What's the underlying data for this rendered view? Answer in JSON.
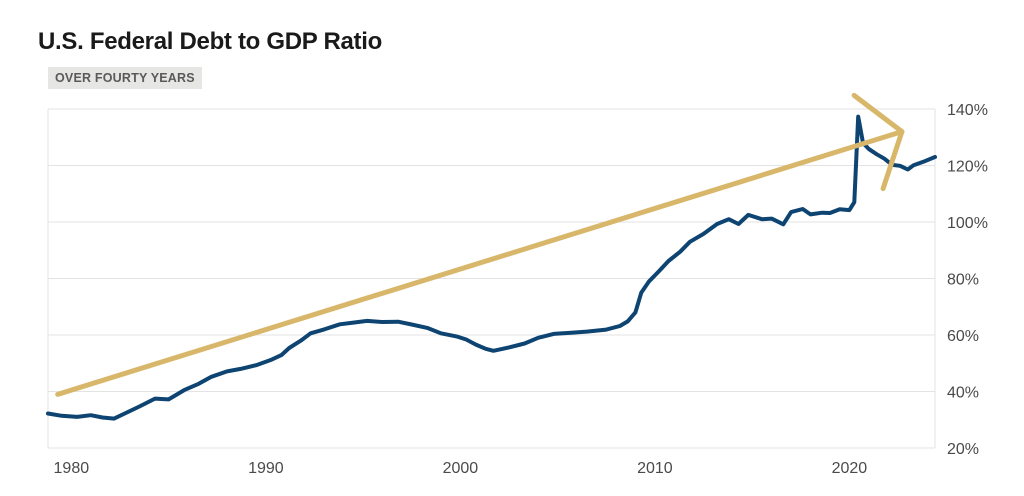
{
  "chart_data": {
    "type": "line",
    "title": "U.S. Federal Debt to GDP Ratio",
    "subtitle": "OVER FOURTY YEARS",
    "xlabel": "",
    "ylabel": "",
    "xlim": [
      1978.8,
      2024.4
    ],
    "ylim": [
      20,
      140
    ],
    "x_ticks": [
      1980,
      1990,
      2000,
      2010,
      2020
    ],
    "x_tick_labels": [
      "1980",
      "1990",
      "2000",
      "2010",
      "2020"
    ],
    "y_ticks": [
      20,
      40,
      60,
      80,
      100,
      120,
      140
    ],
    "y_tick_labels": [
      "20%",
      "40%",
      "60%",
      "80%",
      "100%",
      "120%",
      "140%"
    ],
    "y_axis_position": "right",
    "grid": "horizontal",
    "series": [
      {
        "color": "#0d4471",
        "points": [
          [
            1978.8,
            32.2
          ],
          [
            1979.5,
            31.4
          ],
          [
            1980.3,
            31.0
          ],
          [
            1981.0,
            31.6
          ],
          [
            1981.6,
            30.8
          ],
          [
            1982.2,
            30.4
          ],
          [
            1982.8,
            32.4
          ],
          [
            1983.5,
            34.7
          ],
          [
            1984.3,
            37.5
          ],
          [
            1985.0,
            37.2
          ],
          [
            1985.8,
            40.5
          ],
          [
            1986.5,
            42.6
          ],
          [
            1987.2,
            45.2
          ],
          [
            1988.0,
            47.1
          ],
          [
            1988.7,
            48.0
          ],
          [
            1989.5,
            49.3
          ],
          [
            1990.3,
            51.3
          ],
          [
            1990.8,
            52.9
          ],
          [
            1991.2,
            55.4
          ],
          [
            1991.8,
            58.0
          ],
          [
            1992.3,
            60.6
          ],
          [
            1993.0,
            62.0
          ],
          [
            1993.8,
            63.8
          ],
          [
            1994.5,
            64.4
          ],
          [
            1995.2,
            65.0
          ],
          [
            1996.0,
            64.6
          ],
          [
            1996.8,
            64.7
          ],
          [
            1997.5,
            63.7
          ],
          [
            1998.3,
            62.5
          ],
          [
            1999.0,
            60.6
          ],
          [
            1999.8,
            59.5
          ],
          [
            2000.3,
            58.4
          ],
          [
            2000.8,
            56.6
          ],
          [
            2001.3,
            55.1
          ],
          [
            2001.7,
            54.4
          ],
          [
            2002.5,
            55.6
          ],
          [
            2003.3,
            57.0
          ],
          [
            2004.0,
            59.0
          ],
          [
            2004.8,
            60.4
          ],
          [
            2005.7,
            60.8
          ],
          [
            2006.5,
            61.2
          ],
          [
            2007.5,
            61.9
          ],
          [
            2008.2,
            63.2
          ],
          [
            2008.6,
            64.8
          ],
          [
            2009.0,
            68.0
          ],
          [
            2009.3,
            75.0
          ],
          [
            2009.7,
            79.0
          ],
          [
            2010.2,
            82.5
          ],
          [
            2010.7,
            86.2
          ],
          [
            2011.3,
            89.5
          ],
          [
            2011.8,
            93.0
          ],
          [
            2012.5,
            95.8
          ],
          [
            2013.2,
            99.3
          ],
          [
            2013.8,
            101.0
          ],
          [
            2014.3,
            99.3
          ],
          [
            2014.8,
            102.5
          ],
          [
            2015.5,
            101.0
          ],
          [
            2016.0,
            101.2
          ],
          [
            2016.6,
            99.2
          ],
          [
            2017.0,
            103.5
          ],
          [
            2017.6,
            104.6
          ],
          [
            2018.0,
            102.7
          ],
          [
            2018.6,
            103.3
          ],
          [
            2019.0,
            103.2
          ],
          [
            2019.5,
            104.5
          ],
          [
            2020.0,
            104.2
          ],
          [
            2020.25,
            107.0
          ],
          [
            2020.45,
            137.3
          ],
          [
            2020.7,
            128.0
          ],
          [
            2021.0,
            125.8
          ],
          [
            2021.4,
            124.0
          ],
          [
            2021.8,
            122.4
          ],
          [
            2022.2,
            120.2
          ],
          [
            2022.6,
            119.9
          ],
          [
            2023.0,
            118.6
          ],
          [
            2023.3,
            120.1
          ],
          [
            2023.8,
            121.3
          ],
          [
            2024.4,
            123.0
          ]
        ]
      }
    ],
    "trend_arrow": {
      "color": "#d8b76a",
      "from": [
        1979.3,
        39.0
      ],
      "to": [
        2022.7,
        132.0
      ]
    }
  }
}
